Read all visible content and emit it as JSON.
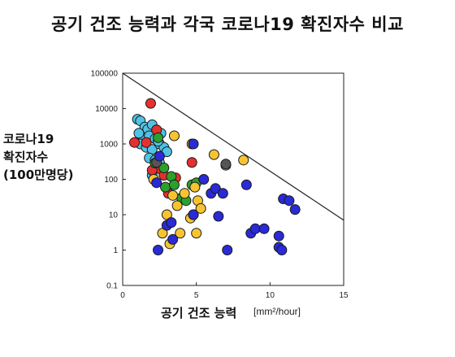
{
  "chart_data": {
    "type": "scatter",
    "title": "공기 건조 능력과 각국 코로나19 확진자수 비교",
    "ylabel_lines": [
      "코로나19",
      "확진자수",
      "(100만명당)"
    ],
    "xlabel": "공기 건조 능력",
    "xunit": "[mm²/hour]",
    "xlim": [
      0,
      15
    ],
    "ylim_log": [
      0.1,
      100000
    ],
    "y_scale": "log",
    "x_ticks": [
      "0",
      "5",
      "10",
      "15"
    ],
    "y_ticks": [
      "100000",
      "10000",
      "1000",
      "100",
      "10",
      "1",
      "0.1"
    ],
    "reference_line": {
      "x": [
        0,
        15
      ],
      "y": [
        100000,
        7
      ]
    },
    "series": [
      {
        "color": "#4fc3e6",
        "points": [
          [
            1.0,
            5000
          ],
          [
            1.2,
            4500
          ],
          [
            1.5,
            3000
          ],
          [
            1.7,
            2600
          ],
          [
            2.0,
            3500
          ],
          [
            2.3,
            2500
          ],
          [
            2.6,
            2000
          ],
          [
            1.4,
            1500
          ],
          [
            1.8,
            1700
          ],
          [
            2.2,
            1400
          ],
          [
            1.2,
            1000
          ],
          [
            1.6,
            800
          ],
          [
            2.0,
            700
          ],
          [
            2.5,
            1000
          ],
          [
            2.8,
            800
          ],
          [
            3.0,
            600
          ],
          [
            1.8,
            400
          ],
          [
            2.2,
            350
          ],
          [
            2.5,
            300
          ],
          [
            2.7,
            200
          ],
          [
            2.0,
            130
          ],
          [
            1.1,
            2000
          ],
          [
            2.4,
            1200
          ]
        ]
      },
      {
        "color": "#e53030",
        "points": [
          [
            1.9,
            14000
          ],
          [
            2.3,
            2500
          ],
          [
            0.8,
            1100
          ],
          [
            1.6,
            1100
          ],
          [
            2.5,
            200
          ],
          [
            2.0,
            180
          ],
          [
            3.6,
            110
          ],
          [
            2.8,
            130
          ],
          [
            3.1,
            40
          ],
          [
            4.7,
            300
          ]
        ]
      },
      {
        "color": "#2ca02c",
        "points": [
          [
            2.4,
            1500
          ],
          [
            2.2,
            290
          ],
          [
            2.8,
            210
          ],
          [
            3.3,
            120
          ],
          [
            2.9,
            60
          ],
          [
            3.5,
            70
          ],
          [
            4.0,
            30
          ],
          [
            4.3,
            25
          ],
          [
            4.7,
            70
          ],
          [
            5.0,
            80
          ]
        ]
      },
      {
        "color": "#f7c431",
        "points": [
          [
            3.5,
            1700
          ],
          [
            4.7,
            1000
          ],
          [
            6.2,
            500
          ],
          [
            7.0,
            250
          ],
          [
            8.2,
            350
          ],
          [
            2.1,
            100
          ],
          [
            3.4,
            35
          ],
          [
            3.7,
            18
          ],
          [
            4.2,
            40
          ],
          [
            4.9,
            60
          ],
          [
            5.1,
            25
          ],
          [
            5.3,
            15
          ],
          [
            4.6,
            8
          ],
          [
            3.0,
            10
          ],
          [
            2.7,
            3
          ],
          [
            3.2,
            1.5
          ],
          [
            3.9,
            3
          ],
          [
            5.0,
            3
          ]
        ]
      },
      {
        "color": "#555555",
        "points": [
          [
            2.3,
            300
          ],
          [
            7.0,
            270
          ],
          [
            4.8,
            10
          ]
        ]
      },
      {
        "color": "#2a2ad6",
        "points": [
          [
            4.8,
            1000
          ],
          [
            2.5,
            450
          ],
          [
            2.3,
            80
          ],
          [
            5.5,
            100
          ],
          [
            6.0,
            40
          ],
          [
            6.3,
            55
          ],
          [
            6.8,
            40
          ],
          [
            8.4,
            70
          ],
          [
            3.0,
            5
          ],
          [
            3.3,
            6
          ],
          [
            3.4,
            2
          ],
          [
            2.4,
            1
          ],
          [
            6.5,
            9
          ],
          [
            8.7,
            3
          ],
          [
            9.0,
            4
          ],
          [
            9.6,
            4
          ],
          [
            10.6,
            2.5
          ],
          [
            10.6,
            1.2
          ],
          [
            10.8,
            1
          ],
          [
            10.9,
            28
          ],
          [
            11.3,
            25
          ],
          [
            11.7,
            14
          ],
          [
            7.1,
            1
          ],
          [
            4.8,
            10
          ]
        ]
      }
    ]
  }
}
